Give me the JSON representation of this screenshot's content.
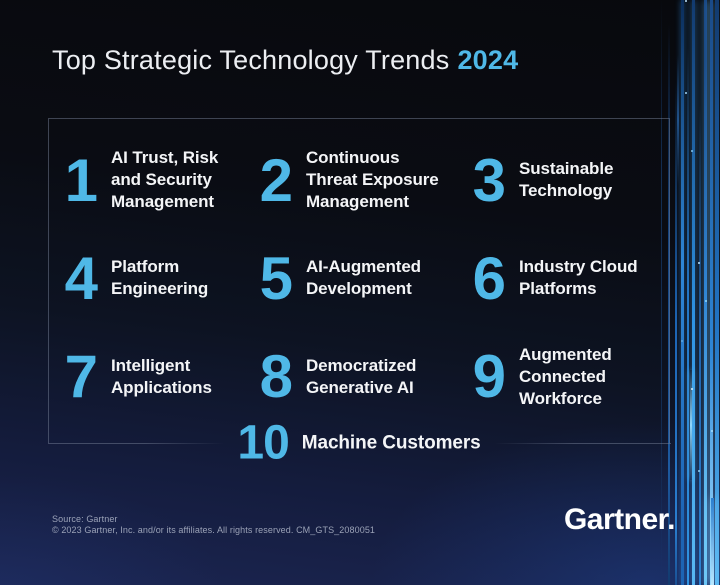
{
  "title": {
    "main": "Top Strategic Technology Trends",
    "year": "2024"
  },
  "trends": [
    {
      "number": "1",
      "label": "AI Trust, Risk\nand Security\nManagement"
    },
    {
      "number": "2",
      "label": "Continuous\nThreat Exposure\nManagement"
    },
    {
      "number": "3",
      "label": "Sustainable\nTechnology"
    },
    {
      "number": "4",
      "label": "Platform\nEngineering"
    },
    {
      "number": "5",
      "label": "AI-Augmented\nDevelopment"
    },
    {
      "number": "6",
      "label": "Industry Cloud\nPlatforms"
    },
    {
      "number": "7",
      "label": "Intelligent\nApplications"
    },
    {
      "number": "8",
      "label": "Democratized\nGenerative AI"
    },
    {
      "number": "9",
      "label": "Augmented\nConnected\nWorkforce"
    },
    {
      "number": "10",
      "label": "Machine Customers"
    }
  ],
  "footer": {
    "source_line1": "Source: Gartner",
    "source_line2": "© 2023 Gartner, Inc. and/or its affiliates. All rights reserved. CM_GTS_2080051",
    "logo": "Gartner."
  },
  "colors": {
    "accent": "#4FB8E7"
  }
}
